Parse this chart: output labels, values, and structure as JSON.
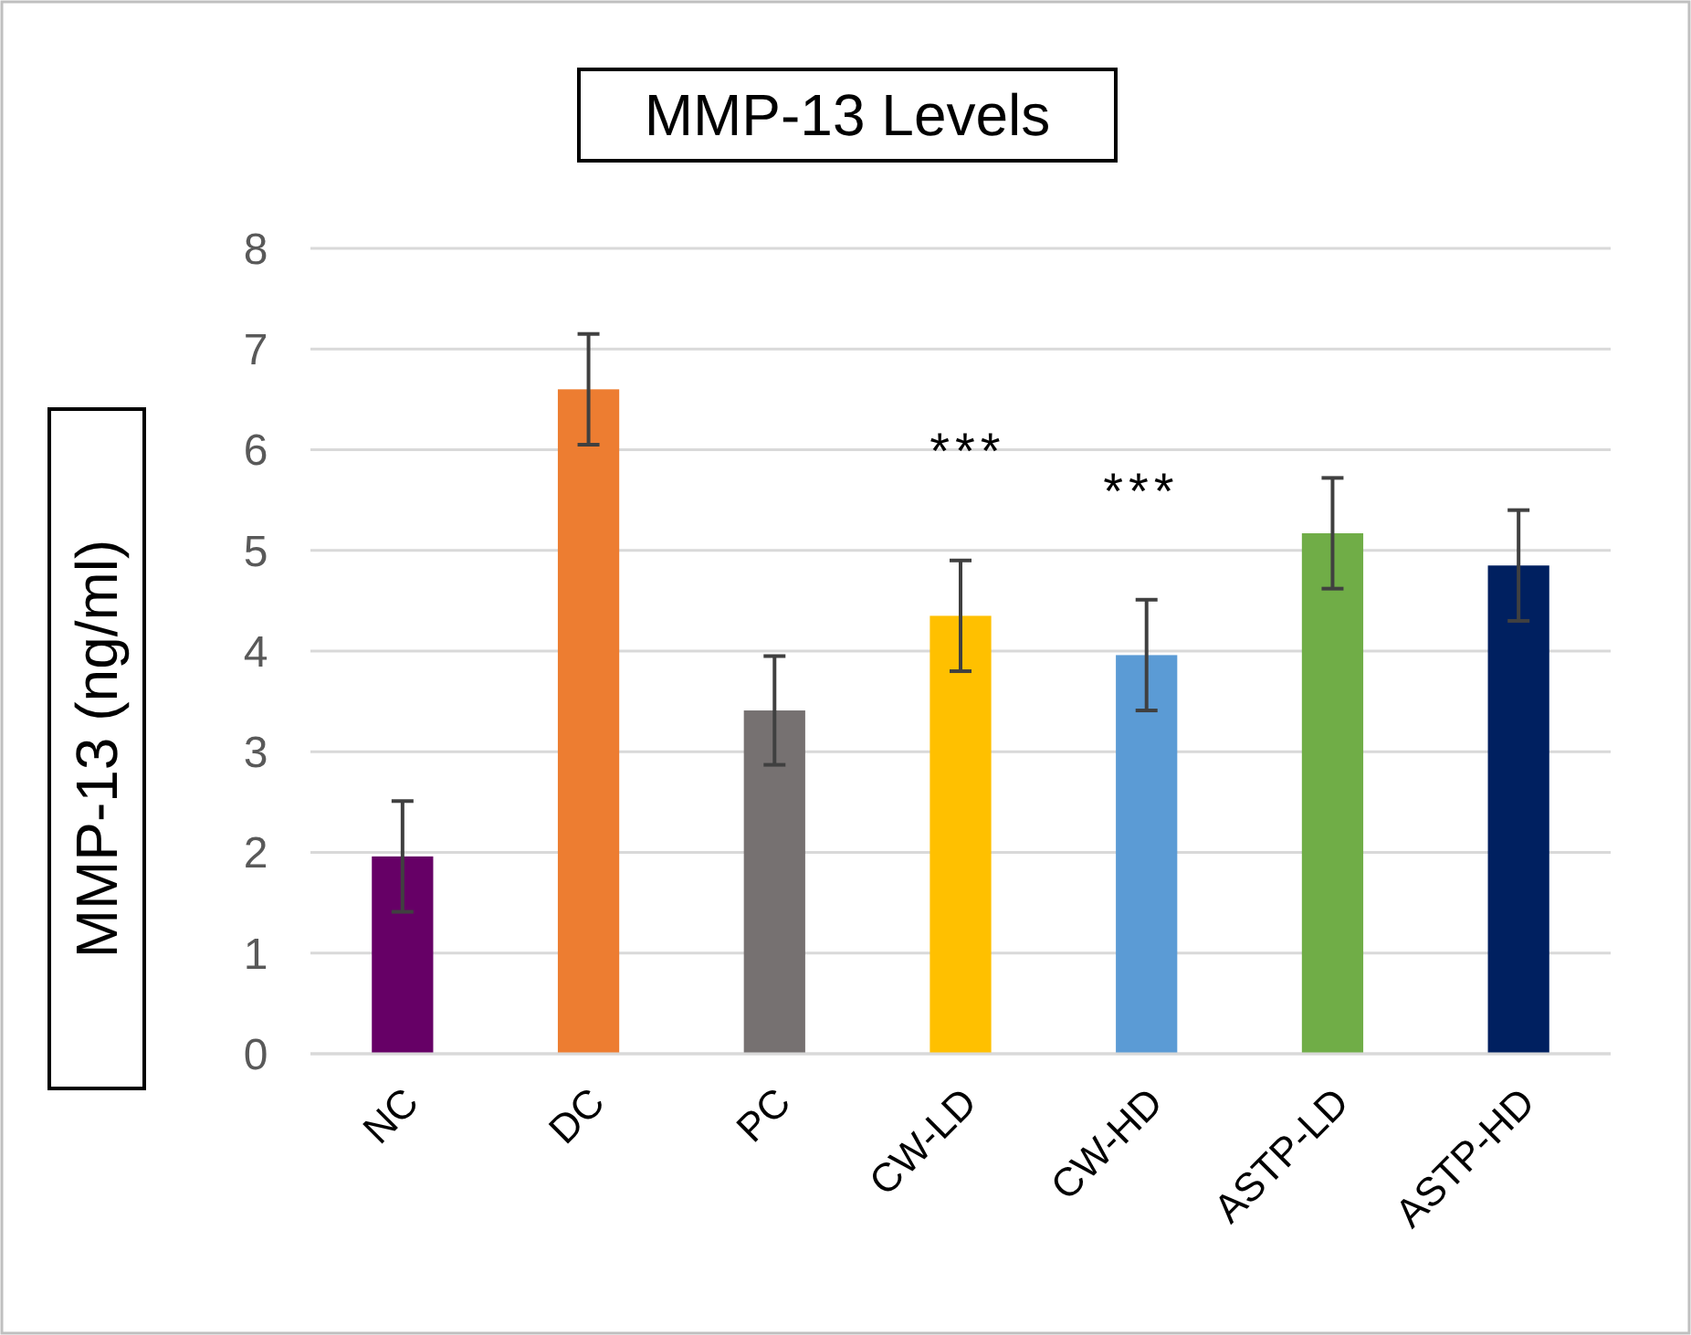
{
  "chart_data": {
    "type": "bar",
    "title": "MMP-13 Levels",
    "ylabel": "MMP-13 (ng/ml)",
    "categories": [
      "NC",
      "DC",
      "PC",
      "CW-LD",
      "CW-HD",
      "ASTP-LD",
      "ASTP-HD"
    ],
    "values": [
      1.96,
      6.6,
      3.41,
      4.35,
      3.96,
      5.17,
      4.85
    ],
    "colors": [
      "#660066",
      "#ed7d31",
      "#767171",
      "#ffc000",
      "#5b9bd5",
      "#70ad47",
      "#002060"
    ],
    "errors": [
      0.55,
      0.55,
      0.54,
      0.55,
      0.55,
      0.55,
      0.55
    ],
    "ylim": [
      0,
      8
    ],
    "yticks": [
      0,
      1,
      2,
      3,
      4,
      5,
      6,
      7,
      8
    ],
    "grid": "y",
    "annotations": [
      "***",
      "***"
    ]
  }
}
